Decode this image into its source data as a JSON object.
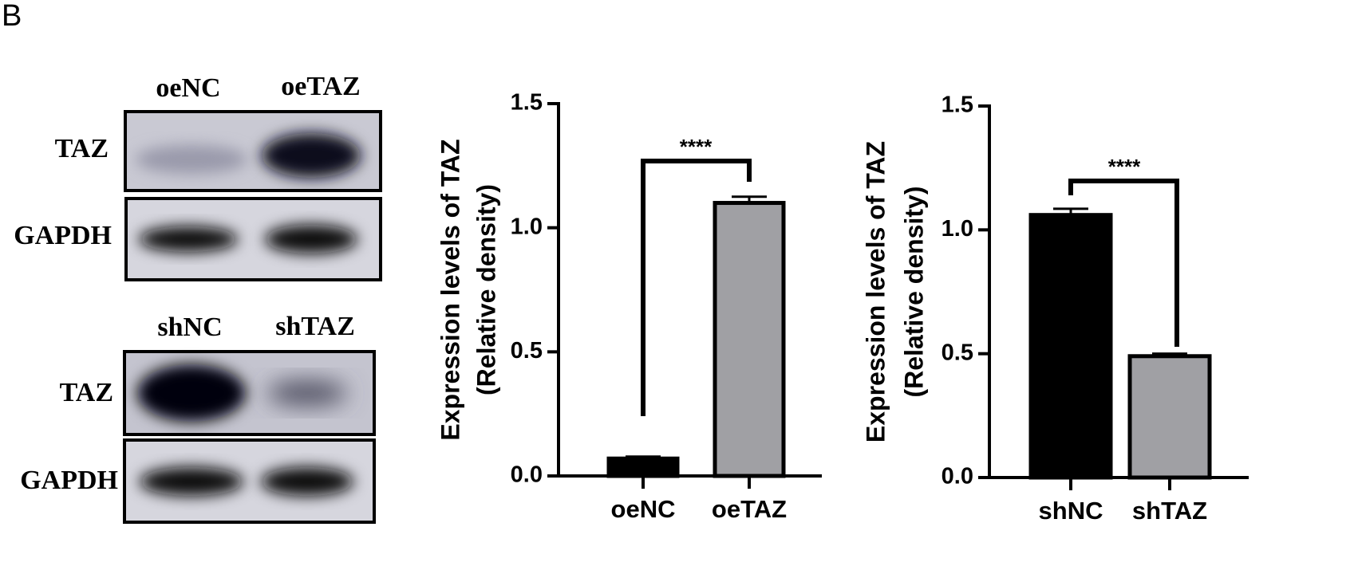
{
  "panel_label": "B",
  "blots": [
    {
      "lanes": [
        "oeNC",
        "oeTAZ"
      ],
      "rows": [
        "TAZ",
        "GAPDH"
      ]
    },
    {
      "lanes": [
        "shNC",
        "shTAZ"
      ],
      "rows": [
        "TAZ",
        "GAPDH"
      ]
    }
  ],
  "chart_data": [
    {
      "type": "bar",
      "y_label": [
        "Expression levels of TAZ",
        "(Relative density)"
      ],
      "categories": [
        "oeNC",
        "oeTAZ"
      ],
      "values": [
        0.07,
        1.1
      ],
      "errors": [
        0.008,
        0.025
      ],
      "colors": [
        "#000000",
        "#a0a0a4"
      ],
      "ylim": [
        0,
        1.5
      ],
      "yticks": [
        {
          "value": 0,
          "label": "0.0"
        },
        {
          "value": 0.5,
          "label": "0.5"
        },
        {
          "value": 1,
          "label": "1.0"
        },
        {
          "value": 1.5,
          "label": "1.5"
        }
      ],
      "annotation": "****"
    },
    {
      "type": "bar",
      "y_label": [
        "Expression levels of TAZ",
        "(Relative density)"
      ],
      "categories": [
        "shNC",
        "shTAZ"
      ],
      "values": [
        1.06,
        0.49
      ],
      "errors": [
        0.025,
        0.01
      ],
      "colors": [
        "#000000",
        "#a0a0a4"
      ],
      "ylim": [
        0,
        1.5
      ],
      "yticks": [
        {
          "value": 0,
          "label": "0.0"
        },
        {
          "value": 0.5,
          "label": "0.5"
        },
        {
          "value": 1,
          "label": "1.0"
        },
        {
          "value": 1.5,
          "label": "1.5"
        }
      ],
      "annotation": "****"
    }
  ]
}
